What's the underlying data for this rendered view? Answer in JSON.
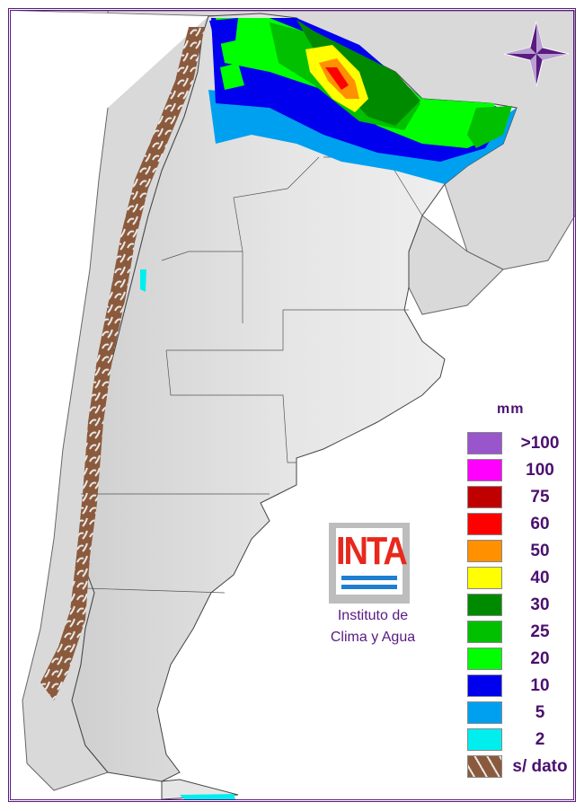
{
  "legend": {
    "unit": "mm",
    "items": [
      {
        "label": ">100",
        "color": "#9955cc"
      },
      {
        "label": "100",
        "color": "#ff00ff"
      },
      {
        "label": "75",
        "color": "#c00000"
      },
      {
        "label": "60",
        "color": "#ff0000"
      },
      {
        "label": "50",
        "color": "#ff9000"
      },
      {
        "label": "40",
        "color": "#ffff00"
      },
      {
        "label": "30",
        "color": "#008a00"
      },
      {
        "label": "25",
        "color": "#00c000"
      },
      {
        "label": "20",
        "color": "#00ff00"
      },
      {
        "label": "10",
        "color": "#0000ee"
      },
      {
        "label": "5",
        "color": "#00a0f0"
      },
      {
        "label": "2",
        "color": "#00eeee"
      },
      {
        "label": "s/ dato",
        "color": "#8b5a3c"
      }
    ]
  },
  "logo": {
    "text": "INTA",
    "caption_line1": "Instituto de",
    "caption_line2": "Clima y Agua"
  },
  "icons": {
    "compass": "compass-rose-icon"
  },
  "colors": {
    "frame": "#5a1a80",
    "neighbor_land": "#d9d9d9",
    "argentina_land": "#ececec"
  }
}
